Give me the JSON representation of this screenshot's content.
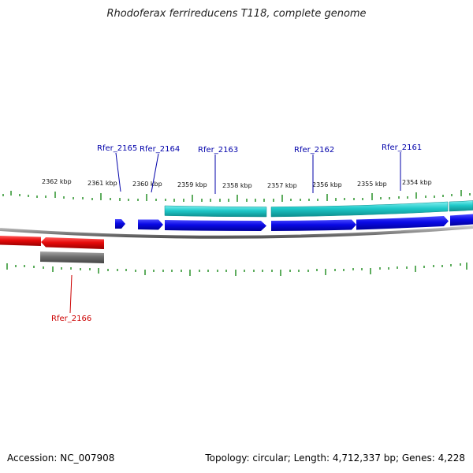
{
  "title": "Rhodoferax ferrireducens T118, complete genome",
  "footer": {
    "accession": "Accession: NC_007908",
    "summary": "Topology: circular; Length: 4,712,337 bp; Genes: 4,228"
  },
  "colors": {
    "forward_label": "#0000aa",
    "reverse_label": "#cc0000",
    "forward_cds": "#0a0ae6",
    "forward_rna": "#1ec8c8",
    "reverse_cds": "#e60a0a",
    "reverse_rna": "#6e6e6e",
    "ticks": "#1a8a1a",
    "backbone": "#8a8a8a"
  },
  "scale_ticks": [
    {
      "label": "2362 kbp"
    },
    {
      "label": "2361 kbp"
    },
    {
      "label": "2360 kbp"
    },
    {
      "label": "2359 kbp"
    },
    {
      "label": "2358 kbp"
    },
    {
      "label": "2357 kbp"
    },
    {
      "label": "2356 kbp"
    },
    {
      "label": "2355 kbp"
    },
    {
      "label": "2354 kbp"
    }
  ],
  "genes": [
    {
      "label": "Rfer_2165",
      "strand": "forward"
    },
    {
      "label": "Rfer_2164",
      "strand": "forward"
    },
    {
      "label": "Rfer_2163",
      "strand": "forward"
    },
    {
      "label": "Rfer_2162",
      "strand": "forward"
    },
    {
      "label": "Rfer_2161",
      "strand": "forward"
    },
    {
      "label": "Rfer_2166",
      "strand": "reverse"
    }
  ]
}
